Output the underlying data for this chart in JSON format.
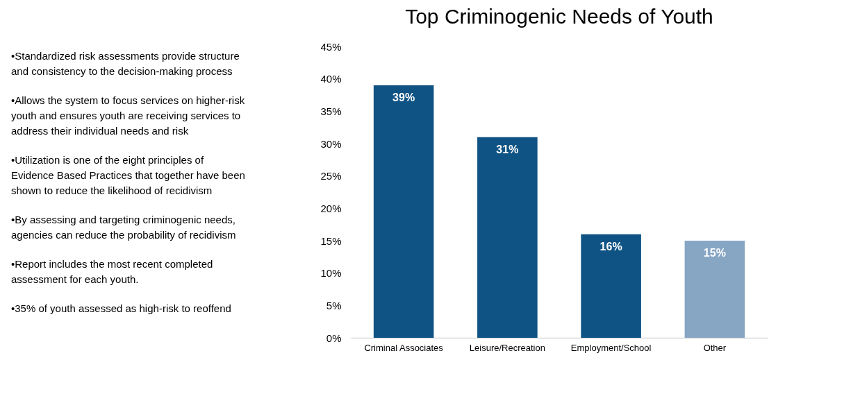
{
  "chart_data": [
    {
      "type": "other",
      "annotations": [
        "•Standardized risk assessments provide structure and consistency to the decision-making process",
        "•Allows the system to focus services on higher-risk youth and ensures youth are receiving services to address their individual needs and risk",
        "•Utilization is one of the eight principles of Evidence Based Practices that together have been shown to reduce the likelihood of recidivism",
        "•By assessing and targeting criminogenic needs, agencies can reduce the probability of recidivism",
        "•Report includes the most recent completed assessment for each youth.",
        "•35% of youth assessed as high-risk to reoffend"
      ]
    },
    {
      "type": "bar",
      "title": "Top Criminogenic Needs of Youth",
      "categories": [
        "Criminal Associates",
        "Leisure/Recreation",
        "Employment/School",
        "Other"
      ],
      "values": [
        39,
        31,
        16,
        15
      ],
      "colors": [
        "#0f5384",
        "#0f5384",
        "#0f5384",
        "#87a6c4"
      ],
      "value_labels": [
        "39%",
        "31%",
        "16%",
        "15%"
      ],
      "ylim": [
        0,
        45
      ],
      "yticks": [
        {
          "value": 0,
          "label": "0%"
        },
        {
          "value": 5,
          "label": "5%"
        },
        {
          "value": 10,
          "label": "10%"
        },
        {
          "value": 15,
          "label": "15%"
        },
        {
          "value": 20,
          "label": "20%"
        },
        {
          "value": 25,
          "label": "25%"
        },
        {
          "value": 30,
          "label": "30%"
        },
        {
          "value": 35,
          "label": "35%"
        },
        {
          "value": 40,
          "label": "40%"
        },
        {
          "value": 45,
          "label": "45%"
        }
      ],
      "grid": false,
      "legend": false
    }
  ]
}
